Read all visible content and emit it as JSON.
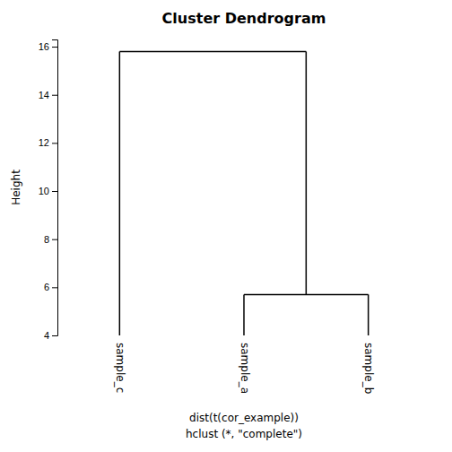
{
  "chart_data": {
    "type": "dendrogram",
    "title": "Cluster Dendrogram",
    "ylabel": "Height",
    "xlabel": [
      "dist(t(cor_example))",
      "hclust (*, \"complete\")"
    ],
    "tree": {
      "height": 15.8,
      "children": [
        {
          "name": "sample_c"
        },
        {
          "height": 5.7,
          "children": [
            {
              "name": "sample_a"
            },
            {
              "name": "sample_b"
            }
          ]
        }
      ]
    },
    "ylim": [
      4,
      16.3
    ],
    "yticks": [
      4,
      6,
      8,
      10,
      12,
      14,
      16
    ],
    "color": "#000000"
  }
}
